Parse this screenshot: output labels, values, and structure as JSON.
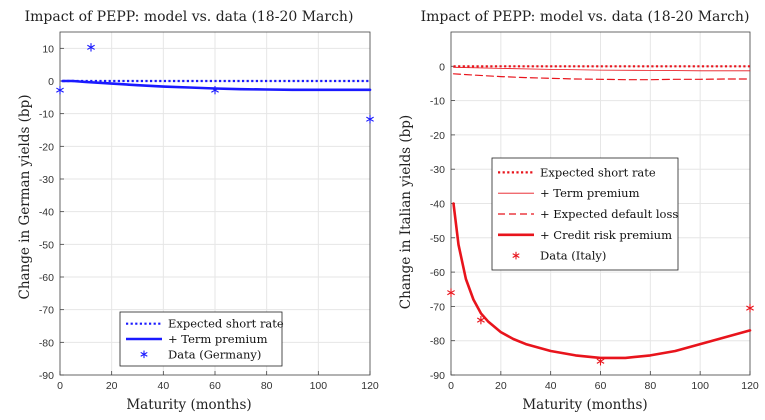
{
  "chart_data": [
    {
      "type": "line",
      "title": "Impact of PEPP: model vs. data (18-20 March)",
      "xlabel": "Maturity (months)",
      "ylabel": "Change in German yields (bp)",
      "xlim": [
        0,
        120
      ],
      "ylim": [
        -90,
        15
      ],
      "xticks": [
        0,
        20,
        40,
        60,
        80,
        100,
        120
      ],
      "yticks": [
        10,
        0,
        -10,
        -20,
        -30,
        -40,
        -50,
        -60,
        -70,
        -80,
        -90
      ],
      "legend_position": "bottom-center",
      "series": [
        {
          "name": "Expected short rate",
          "style": "dotted",
          "color": "#1a1aff",
          "width": 2.2,
          "x": [
            1,
            120
          ],
          "y": [
            0,
            0
          ]
        },
        {
          "name": "+ Term premium",
          "style": "solid",
          "color": "#1a1aff",
          "width": 2.6,
          "x": [
            1,
            5,
            10,
            20,
            30,
            40,
            50,
            60,
            70,
            80,
            90,
            100,
            110,
            120
          ],
          "y": [
            0,
            0,
            -0.3,
            -0.8,
            -1.3,
            -1.7,
            -2.0,
            -2.3,
            -2.5,
            -2.6,
            -2.7,
            -2.7,
            -2.7,
            -2.7
          ]
        },
        {
          "name": "Data (Germany)",
          "style": "marker",
          "color": "#1a1aff",
          "x": [
            0,
            12,
            60,
            120
          ],
          "y": [
            -2.8,
            10.3,
            -2.8,
            -11.7
          ]
        }
      ]
    },
    {
      "type": "line",
      "title": "Impact of PEPP: model vs. data (18-20 March)",
      "xlabel": "Maturity (months)",
      "ylabel": "Change in Italian yields (bp)",
      "xlim": [
        0,
        120
      ],
      "ylim": [
        -90,
        10
      ],
      "xticks": [
        0,
        20,
        40,
        60,
        80,
        100,
        120
      ],
      "yticks": [
        0,
        -10,
        -20,
        -30,
        -40,
        -50,
        -60,
        -70,
        -80,
        -90
      ],
      "legend_position": "center",
      "series": [
        {
          "name": "Expected short rate",
          "style": "dotted",
          "color": "#e8141c",
          "width": 2.2,
          "x": [
            1,
            120
          ],
          "y": [
            0,
            0
          ]
        },
        {
          "name": "+ Term premium",
          "style": "thin",
          "color": "#e8141c",
          "width": 0.8,
          "x": [
            1,
            20,
            40,
            60,
            80,
            100,
            120
          ],
          "y": [
            -0.3,
            -0.6,
            -0.9,
            -1.1,
            -1.2,
            -1.3,
            -1.3
          ]
        },
        {
          "name": "+ Expected default loss",
          "style": "dashed",
          "color": "#e8141c",
          "width": 1.2,
          "x": [
            1,
            10,
            20,
            30,
            40,
            50,
            60,
            70,
            80,
            90,
            100,
            110,
            120
          ],
          "y": [
            -2.2,
            -2.6,
            -3.0,
            -3.3,
            -3.5,
            -3.7,
            -3.8,
            -3.9,
            -3.9,
            -3.8,
            -3.8,
            -3.7,
            -3.7
          ]
        },
        {
          "name": "+ Credit risk premium",
          "style": "solid",
          "color": "#e8141c",
          "width": 2.6,
          "x": [
            1,
            3,
            6,
            9,
            12,
            15,
            20,
            25,
            30,
            40,
            50,
            60,
            70,
            80,
            90,
            100,
            110,
            120
          ],
          "y": [
            -40,
            -52,
            -62,
            -68,
            -72,
            -74.5,
            -77.5,
            -79.5,
            -81,
            -83,
            -84.3,
            -85,
            -85,
            -84.3,
            -83,
            -81,
            -79,
            -77
          ]
        },
        {
          "name": "Data (Italy)",
          "style": "marker",
          "color": "#e8141c",
          "x": [
            0,
            12,
            60,
            120
          ],
          "y": [
            -66,
            -74,
            -86,
            -70.5
          ]
        }
      ]
    }
  ]
}
